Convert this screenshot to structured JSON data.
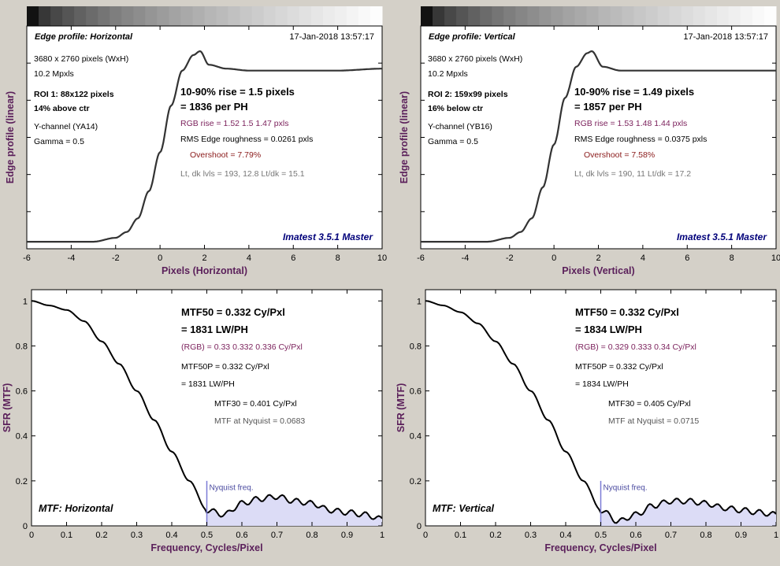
{
  "colors": {
    "background": "#d4d0c8",
    "plot_bg": "#ffffff",
    "axis_label": "#5a1f5a",
    "curve": "#333333",
    "rgb_text": "#7a1f5a",
    "overshoot_text": "#8a1a1a",
    "gray_text": "#777777",
    "brand": "#00007a",
    "nyquist_line": "#7b7bd6",
    "fill": "#dcdcf6"
  },
  "edge_panels": [
    {
      "title": "Edge profile: Horizontal",
      "date": "17-Jan-2018 13:57:17",
      "info_lines": [
        "3680 x 2760 pixels (WxH)",
        "10.2 Mpxls"
      ],
      "roi_line": "ROI 1:  88x122 pixels",
      "roi_pos": "14% above ctr",
      "channel": "Y-channel  (YA14)",
      "gamma": "Gamma = 0.5",
      "rise": "10-90% rise = 1.5 pixels",
      "per_ph": "= 1836 per PH",
      "rgb_rise": "RGB rise = 1.52  1.5  1.47 pxls",
      "roughness": "RMS Edge roughness = 0.0261 pxls",
      "overshoot": "Overshoot = 7.79%",
      "levels": "Lt, dk lvls = 193, 12.8   Lt/dk = 15.1",
      "brand": "Imatest 3.5.1 Master",
      "ylabel": "Edge profile (linear)",
      "xlabel": "Pixels (Horizontal)",
      "xticks": [
        "-6",
        "-4",
        "-2",
        "0",
        "2",
        "4",
        "6",
        "8",
        "10"
      ]
    },
    {
      "title": "Edge profile: Vertical",
      "date": "17-Jan-2018 13:57:17",
      "info_lines": [
        "3680 x 2760 pixels (WxH)",
        "10.2 Mpxls"
      ],
      "roi_line": "ROI 2:  159x99 pixels",
      "roi_pos": "16% below ctr",
      "channel": "Y-channel  (YB16)",
      "gamma": "Gamma = 0.5",
      "rise": "10-90% rise = 1.49 pixels",
      "per_ph": "= 1857 per PH",
      "rgb_rise": "RGB rise = 1.53  1.48  1.44 pxls",
      "roughness": "RMS Edge roughness = 0.0375 pxls",
      "overshoot": "Overshoot = 7.58%",
      "levels": "Lt, dk lvls = 190, 11   Lt/dk = 17.2",
      "brand": "Imatest 3.5.1 Master",
      "ylabel": "Edge profile (linear)",
      "xlabel": "Pixels (Vertical)",
      "xticks": [
        "-6",
        "-4",
        "-2",
        "0",
        "2",
        "4",
        "6",
        "8",
        "10"
      ]
    }
  ],
  "mtf_panels": [
    {
      "mtf50": "MTF50 = 0.332 Cy/Pxl",
      "lwph": "= 1831 LW/PH",
      "rgb": "(RGB) = 0.33  0.332  0.336 Cy/Pxl",
      "mtf50p": "MTF50P = 0.332 Cy/Pxl",
      "mtf50p_lwph": "= 1831 LW/PH",
      "mtf30": "MTF30 = 0.401 Cy/Pxl",
      "nyq_val": "MTF at Nyquist = 0.0683",
      "nyq_label": "Nyquist freq.",
      "corner": "MTF: Horizontal",
      "ylabel": "SFR (MTF)",
      "xlabel": "Frequency, Cycles/Pixel",
      "xticks": [
        "0",
        "0.1",
        "0.2",
        "0.3",
        "0.4",
        "0.5",
        "0.6",
        "0.7",
        "0.8",
        "0.9",
        "1"
      ],
      "yticks": [
        "0",
        "0.2",
        "0.4",
        "0.6",
        "0.8",
        "1"
      ]
    },
    {
      "mtf50": "MTF50 = 0.332 Cy/Pxl",
      "lwph": "= 1834 LW/PH",
      "rgb": "(RGB) = 0.329  0.333  0.34 Cy/Pxl",
      "mtf50p": "MTF50P = 0.332 Cy/Pxl",
      "mtf50p_lwph": "= 1834 LW/PH",
      "mtf30": "MTF30 = 0.405 Cy/Pxl",
      "nyq_val": "MTF at Nyquist = 0.0715",
      "nyq_label": "Nyquist freq.",
      "corner": "MTF: Vertical",
      "ylabel": "SFR (MTF)",
      "xlabel": "Frequency, Cycles/Pixel",
      "xticks": [
        "0",
        "0.1",
        "0.2",
        "0.3",
        "0.4",
        "0.5",
        "0.6",
        "0.7",
        "0.8",
        "0.9",
        "1"
      ],
      "yticks": [
        "0",
        "0.2",
        "0.4",
        "0.6",
        "0.8",
        "1"
      ]
    }
  ],
  "chart_data": [
    {
      "type": "line",
      "title": "Edge profile: Horizontal",
      "xlabel": "Pixels (Horizontal)",
      "ylabel": "Edge profile (linear)",
      "xlim": [
        -6,
        10
      ],
      "ylim": [
        0,
        1
      ],
      "x": [
        -6,
        -3,
        -2,
        -1.5,
        -1,
        -0.5,
        0,
        0.5,
        1,
        1.5,
        1.8,
        2.2,
        3,
        4,
        6,
        8,
        10
      ],
      "y": [
        0.02,
        0.02,
        0.04,
        0.07,
        0.14,
        0.28,
        0.48,
        0.72,
        0.9,
        0.98,
        1.0,
        0.93,
        0.91,
        0.9,
        0.9,
        0.9,
        0.91
      ]
    },
    {
      "type": "line",
      "title": "Edge profile: Vertical",
      "xlabel": "Pixels (Vertical)",
      "ylabel": "Edge profile (linear)",
      "xlim": [
        -6,
        10
      ],
      "ylim": [
        0,
        1
      ],
      "x": [
        -6,
        -3,
        -2,
        -1.5,
        -1,
        -0.5,
        0,
        0.5,
        1,
        1.5,
        1.7,
        2.2,
        3,
        4,
        6,
        8,
        10
      ],
      "y": [
        0.02,
        0.02,
        0.04,
        0.07,
        0.14,
        0.3,
        0.52,
        0.76,
        0.92,
        0.99,
        1.0,
        0.92,
        0.9,
        0.9,
        0.9,
        0.9,
        0.9
      ]
    },
    {
      "type": "area",
      "title": "MTF: Horizontal",
      "xlabel": "Frequency, Cycles/Pixel",
      "ylabel": "SFR (MTF)",
      "xlim": [
        0,
        1
      ],
      "ylim": [
        0,
        1.05
      ],
      "x": [
        0,
        0.05,
        0.1,
        0.15,
        0.2,
        0.25,
        0.3,
        0.35,
        0.4,
        0.45,
        0.5,
        0.55,
        0.6,
        0.65,
        0.7,
        0.75,
        0.8,
        0.85,
        0.9,
        0.95,
        1.0
      ],
      "y": [
        1.0,
        0.98,
        0.96,
        0.91,
        0.82,
        0.72,
        0.6,
        0.47,
        0.33,
        0.2,
        0.07,
        0.05,
        0.1,
        0.12,
        0.13,
        0.11,
        0.1,
        0.07,
        0.06,
        0.05,
        0.03
      ]
    },
    {
      "type": "area",
      "title": "MTF: Vertical",
      "xlabel": "Frequency, Cycles/Pixel",
      "ylabel": "SFR (MTF)",
      "xlim": [
        0,
        1
      ],
      "ylim": [
        0,
        1.05
      ],
      "x": [
        0,
        0.05,
        0.1,
        0.15,
        0.2,
        0.25,
        0.3,
        0.35,
        0.4,
        0.45,
        0.5,
        0.55,
        0.6,
        0.65,
        0.7,
        0.75,
        0.8,
        0.85,
        0.9,
        0.95,
        1.0
      ],
      "y": [
        1.0,
        0.98,
        0.95,
        0.9,
        0.82,
        0.72,
        0.6,
        0.47,
        0.33,
        0.2,
        0.07,
        0.02,
        0.05,
        0.09,
        0.11,
        0.11,
        0.1,
        0.08,
        0.07,
        0.06,
        0.05
      ]
    }
  ]
}
